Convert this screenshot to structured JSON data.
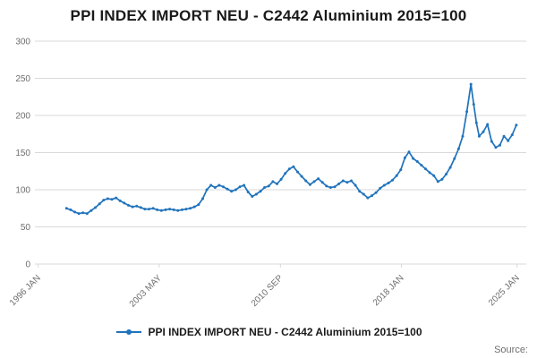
{
  "title": "PPI INDEX IMPORT NEU - C2442 Aluminium 2015=100",
  "legend": {
    "label": "PPI INDEX IMPORT NEU - C2442 Aluminium 2015=100"
  },
  "source": {
    "label": "Source:"
  },
  "chart_data": {
    "type": "line",
    "title": "PPI INDEX IMPORT NEU - C2442 Aluminium 2015=100",
    "xlabel": "",
    "ylabel": "",
    "ylim": [
      0,
      300
    ],
    "yticks": [
      0,
      50,
      100,
      150,
      200,
      250,
      300
    ],
    "x_range": [
      1996.0,
      2025.6
    ],
    "xticks": [
      {
        "label": "1996 JAN",
        "x": 1996.04
      },
      {
        "label": "2003 MAY",
        "x": 2003.37
      },
      {
        "label": "2010 SEP",
        "x": 2010.71
      },
      {
        "label": "2018 JAN",
        "x": 2018.04
      },
      {
        "label": "2025 JAN",
        "x": 2025.04
      }
    ],
    "grid": true,
    "legend_position": "bottom",
    "marker": "circle",
    "line_color": "#2073bc",
    "grid_color": "#d9d9d9",
    "tick_color": "#6d6e70",
    "series": [
      {
        "name": "PPI INDEX IMPORT NEU - C2442 Aluminium 2015=100",
        "points": [
          [
            1997.75,
            75
          ],
          [
            1998,
            73
          ],
          [
            1998.25,
            70
          ],
          [
            1998.5,
            68
          ],
          [
            1998.75,
            69
          ],
          [
            1999,
            68
          ],
          [
            1999.25,
            72
          ],
          [
            1999.5,
            76
          ],
          [
            1999.75,
            81
          ],
          [
            2000,
            86
          ],
          [
            2000.25,
            88
          ],
          [
            2000.5,
            87
          ],
          [
            2000.75,
            89
          ],
          [
            2001,
            85
          ],
          [
            2001.25,
            82
          ],
          [
            2001.5,
            79
          ],
          [
            2001.75,
            77
          ],
          [
            2002,
            78
          ],
          [
            2002.25,
            76
          ],
          [
            2002.5,
            74
          ],
          [
            2002.75,
            74
          ],
          [
            2003,
            75
          ],
          [
            2003.25,
            73
          ],
          [
            2003.5,
            72
          ],
          [
            2003.75,
            73
          ],
          [
            2004,
            74
          ],
          [
            2004.25,
            73
          ],
          [
            2004.5,
            72
          ],
          [
            2004.75,
            73
          ],
          [
            2005,
            74
          ],
          [
            2005.25,
            75
          ],
          [
            2005.5,
            77
          ],
          [
            2005.75,
            80
          ],
          [
            2006,
            88
          ],
          [
            2006.25,
            100
          ],
          [
            2006.5,
            106
          ],
          [
            2006.75,
            103
          ],
          [
            2007,
            106
          ],
          [
            2007.25,
            104
          ],
          [
            2007.5,
            101
          ],
          [
            2007.75,
            98
          ],
          [
            2008,
            100
          ],
          [
            2008.25,
            104
          ],
          [
            2008.5,
            106
          ],
          [
            2008.75,
            97
          ],
          [
            2009,
            91
          ],
          [
            2009.25,
            94
          ],
          [
            2009.5,
            98
          ],
          [
            2009.75,
            103
          ],
          [
            2010,
            105
          ],
          [
            2010.25,
            111
          ],
          [
            2010.5,
            108
          ],
          [
            2010.75,
            114
          ],
          [
            2011,
            122
          ],
          [
            2011.25,
            128
          ],
          [
            2011.5,
            131
          ],
          [
            2011.75,
            124
          ],
          [
            2012,
            118
          ],
          [
            2012.25,
            112
          ],
          [
            2012.5,
            107
          ],
          [
            2012.75,
            111
          ],
          [
            2013,
            115
          ],
          [
            2013.25,
            110
          ],
          [
            2013.5,
            105
          ],
          [
            2013.75,
            103
          ],
          [
            2014,
            104
          ],
          [
            2014.25,
            108
          ],
          [
            2014.5,
            112
          ],
          [
            2014.75,
            110
          ],
          [
            2015,
            112
          ],
          [
            2015.25,
            106
          ],
          [
            2015.5,
            98
          ],
          [
            2015.75,
            94
          ],
          [
            2016,
            89
          ],
          [
            2016.25,
            92
          ],
          [
            2016.5,
            96
          ],
          [
            2016.75,
            102
          ],
          [
            2017,
            106
          ],
          [
            2017.25,
            109
          ],
          [
            2017.5,
            113
          ],
          [
            2017.75,
            119
          ],
          [
            2018,
            127
          ],
          [
            2018.25,
            143
          ],
          [
            2018.5,
            151
          ],
          [
            2018.75,
            142
          ],
          [
            2019,
            138
          ],
          [
            2019.25,
            133
          ],
          [
            2019.5,
            128
          ],
          [
            2019.75,
            123
          ],
          [
            2020,
            119
          ],
          [
            2020.25,
            111
          ],
          [
            2020.5,
            114
          ],
          [
            2020.75,
            121
          ],
          [
            2021,
            130
          ],
          [
            2021.25,
            142
          ],
          [
            2021.5,
            155
          ],
          [
            2021.75,
            172
          ],
          [
            2022,
            205
          ],
          [
            2022.25,
            242
          ],
          [
            2022.42,
            215
          ],
          [
            2022.58,
            190
          ],
          [
            2022.75,
            172
          ],
          [
            2023,
            178
          ],
          [
            2023.25,
            188
          ],
          [
            2023.5,
            165
          ],
          [
            2023.75,
            157
          ],
          [
            2024,
            160
          ],
          [
            2024.25,
            172
          ],
          [
            2024.5,
            166
          ],
          [
            2024.75,
            174
          ],
          [
            2025,
            187
          ]
        ]
      }
    ]
  }
}
